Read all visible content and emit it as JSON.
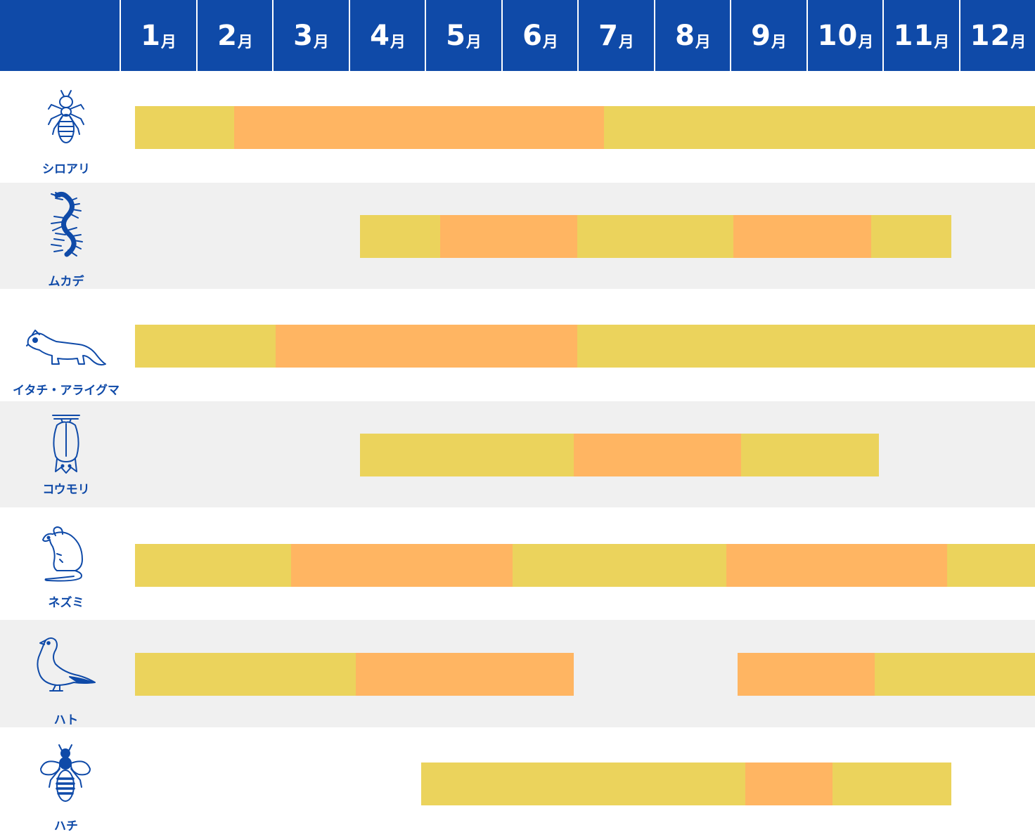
{
  "chart_data": {
    "type": "bar",
    "orientation": "horizontal-timeline",
    "months": [
      {
        "num": "1",
        "unit": "月"
      },
      {
        "num": "2",
        "unit": "月"
      },
      {
        "num": "3",
        "unit": "月"
      },
      {
        "num": "4",
        "unit": "月"
      },
      {
        "num": "5",
        "unit": "月"
      },
      {
        "num": "6",
        "unit": "月"
      },
      {
        "num": "7",
        "unit": "月"
      },
      {
        "num": "8",
        "unit": "月"
      },
      {
        "num": "9",
        "unit": "月"
      },
      {
        "num": "10",
        "unit": "月"
      },
      {
        "num": "11",
        "unit": "月"
      },
      {
        "num": "12",
        "unit": "月"
      }
    ],
    "xlim": [
      1,
      13
    ],
    "colors": {
      "header": "#0f4aa8",
      "yellow": "#ebd35c",
      "orange": "#ffb562",
      "label": "#0f4aa8",
      "row_shade": "#f0f0f0"
    },
    "pests": [
      {
        "label": "シロアリ",
        "icon": "termite-icon",
        "segments": [
          {
            "start": 1.2,
            "end": 2.5,
            "level": "yellow"
          },
          {
            "start": 2.5,
            "end": 7.35,
            "level": "orange"
          },
          {
            "start": 7.35,
            "end": 13.0,
            "level": "yellow"
          }
        ]
      },
      {
        "label": "ムカデ",
        "icon": "centipede-icon",
        "segments": [
          {
            "start": 4.15,
            "end": 5.2,
            "level": "yellow"
          },
          {
            "start": 5.2,
            "end": 7.0,
            "level": "orange"
          },
          {
            "start": 7.0,
            "end": 9.05,
            "level": "yellow"
          },
          {
            "start": 9.05,
            "end": 10.85,
            "level": "orange"
          },
          {
            "start": 10.85,
            "end": 11.9,
            "level": "yellow"
          }
        ]
      },
      {
        "label": "イタチ・アライグマ",
        "icon": "weasel-icon",
        "segments": [
          {
            "start": 1.2,
            "end": 3.05,
            "level": "yellow"
          },
          {
            "start": 3.05,
            "end": 7.0,
            "level": "orange"
          },
          {
            "start": 7.0,
            "end": 13.0,
            "level": "yellow"
          }
        ]
      },
      {
        "label": "コウモリ",
        "icon": "bat-icon",
        "segments": [
          {
            "start": 4.15,
            "end": 6.95,
            "level": "yellow"
          },
          {
            "start": 6.95,
            "end": 9.15,
            "level": "orange"
          },
          {
            "start": 9.15,
            "end": 10.95,
            "level": "yellow"
          }
        ]
      },
      {
        "label": "ネズミ",
        "icon": "mouse-icon",
        "segments": [
          {
            "start": 1.2,
            "end": 3.25,
            "level": "yellow"
          },
          {
            "start": 3.25,
            "end": 6.15,
            "level": "orange"
          },
          {
            "start": 6.15,
            "end": 8.95,
            "level": "yellow"
          },
          {
            "start": 8.95,
            "end": 11.85,
            "level": "orange"
          },
          {
            "start": 11.85,
            "end": 13.0,
            "level": "yellow"
          }
        ]
      },
      {
        "label": "ハト",
        "icon": "pigeon-icon",
        "segments": [
          {
            "start": 1.2,
            "end": 4.1,
            "level": "yellow"
          },
          {
            "start": 4.1,
            "end": 6.95,
            "level": "orange"
          },
          {
            "start": 9.1,
            "end": 10.9,
            "level": "orange"
          },
          {
            "start": 10.9,
            "end": 13.0,
            "level": "yellow"
          }
        ]
      },
      {
        "label": "ハチ",
        "icon": "bee-icon",
        "segments": [
          {
            "start": 4.95,
            "end": 9.2,
            "level": "yellow"
          },
          {
            "start": 9.2,
            "end": 10.35,
            "level": "orange"
          },
          {
            "start": 10.35,
            "end": 11.9,
            "level": "yellow"
          }
        ]
      }
    ]
  }
}
